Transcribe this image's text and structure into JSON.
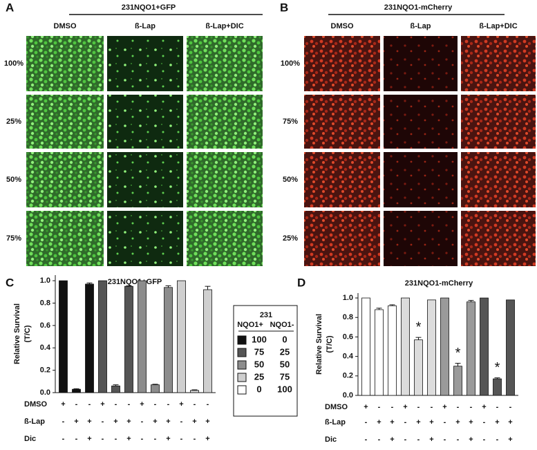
{
  "panels": {
    "A": {
      "label": "A",
      "title": "231NQO1+GFP",
      "columns": [
        "DMSO",
        "ß-Lap",
        "ß-Lap+DIC"
      ],
      "rows": [
        "100%",
        "25%",
        "50%",
        "75%"
      ]
    },
    "B": {
      "label": "B",
      "title": "231NQO1-mCherry",
      "columns": [
        "DMSO",
        "ß-Lap",
        "ß-Lap+DIC"
      ],
      "rows": [
        "100%",
        "75%",
        "50%",
        "25%"
      ]
    }
  },
  "legend": {
    "title": "231",
    "columns": [
      "NQO1+",
      "NQO1-"
    ],
    "rows": [
      {
        "color": "#111111",
        "values": [
          100,
          0
        ]
      },
      {
        "color": "#555555",
        "values": [
          75,
          25
        ]
      },
      {
        "color": "#8c8c8c",
        "values": [
          50,
          50
        ]
      },
      {
        "color": "#cfcfcf",
        "values": [
          25,
          75
        ]
      },
      {
        "color": "#ffffff",
        "values": [
          0,
          100
        ]
      }
    ]
  },
  "chart_data": [
    {
      "type": "bar",
      "label": "C",
      "title": "231NQO1+GFP",
      "ylabel": [
        "Relative Survival",
        "(T/C)"
      ],
      "ylim": [
        0,
        1.05
      ],
      "yticks": [
        {
          "value": 0,
          "label": "0.0"
        },
        0.2,
        0.4,
        0.6,
        0.8,
        {
          "value": 1,
          "label": "1.0"
        }
      ],
      "values": [
        1.0,
        0.03,
        0.97,
        1.0,
        0.06,
        0.95,
        1.0,
        0.07,
        0.94,
        1.0,
        0.02,
        0.92
      ],
      "errors": [
        0,
        0.005,
        0.01,
        0,
        0.01,
        0.005,
        0,
        0.005,
        0.015,
        0,
        0.005,
        0.03
      ],
      "colors": [
        "#111111",
        "#111111",
        "#111111",
        "#555555",
        "#555555",
        "#555555",
        "#8c8c8c",
        "#8c8c8c",
        "#8c8c8c",
        "#cfcfcf",
        "#cfcfcf",
        "#cfcfcf"
      ],
      "conditions": [
        {
          "name": "DMSO",
          "signs": [
            "+",
            "-",
            "-",
            "+",
            "-",
            "-",
            "+",
            "-",
            "-",
            "+",
            "-",
            "-"
          ]
        },
        {
          "name": "ß-Lap",
          "signs": [
            "-",
            "+",
            "+",
            "-",
            "+",
            "+",
            "-",
            "+",
            "+",
            "-",
            "+",
            "+"
          ]
        },
        {
          "name": "Dic",
          "signs": [
            "-",
            "-",
            "+",
            "-",
            "-",
            "+",
            "-",
            "-",
            "+",
            "-",
            "-",
            "+"
          ]
        }
      ]
    },
    {
      "type": "bar",
      "label": "D",
      "title": "231NQO1-mCherry",
      "ylabel": [
        "Relative Survival",
        "(T/C)"
      ],
      "ylim": [
        0,
        1.05
      ],
      "yticks": [
        {
          "value": 0,
          "label": "0.0"
        },
        0.2,
        0.4,
        0.6,
        0.8,
        {
          "value": 1,
          "label": "1.0"
        }
      ],
      "values": [
        1.0,
        0.88,
        0.92,
        1.0,
        0.57,
        0.98,
        1.0,
        0.3,
        0.96,
        1.0,
        0.17,
        0.98
      ],
      "errors": [
        0,
        0.015,
        0.01,
        0,
        0.025,
        0,
        0,
        0.03,
        0.015,
        0,
        0.01,
        0
      ],
      "colors": [
        "#ffffff",
        "#ffffff",
        "#ffffff",
        "#dcdcdc",
        "#dcdcdc",
        "#dcdcdc",
        "#9a9a9a",
        "#9a9a9a",
        "#9a9a9a",
        "#555555",
        "#555555",
        "#555555"
      ],
      "markers": [
        null,
        null,
        null,
        null,
        "*",
        null,
        null,
        "*",
        null,
        null,
        "*",
        null
      ],
      "conditions": [
        {
          "name": "DMSO",
          "signs": [
            "+",
            "-",
            "-",
            "+",
            "-",
            "-",
            "+",
            "-",
            "-",
            "+",
            "-",
            "-"
          ]
        },
        {
          "name": "ß-Lap",
          "signs": [
            "-",
            "+",
            "+",
            "-",
            "+",
            "+",
            "-",
            "+",
            "+",
            "-",
            "+",
            "+"
          ]
        },
        {
          "name": "Dic",
          "signs": [
            "-",
            "-",
            "+",
            "-",
            "-",
            "+",
            "-",
            "-",
            "+",
            "-",
            "-",
            "+"
          ]
        }
      ]
    }
  ]
}
